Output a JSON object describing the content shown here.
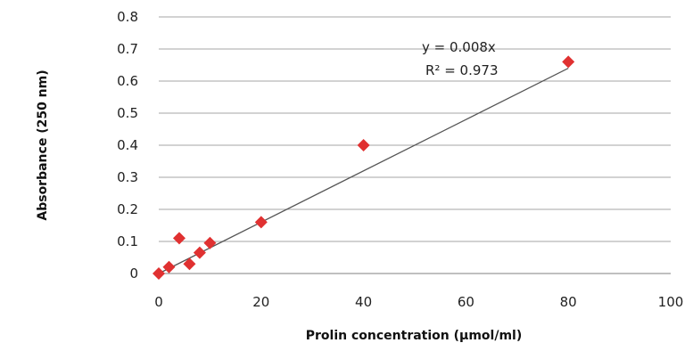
{
  "chart_data": {
    "type": "scatter",
    "title": "",
    "xlabel": "Prolin concentration (µmol/ml)",
    "ylabel": "Absorbance (250 nm)",
    "xlim": [
      0,
      100
    ],
    "ylim": [
      0,
      0.8
    ],
    "x_ticks": [
      "0",
      "20",
      "40",
      "60",
      "80",
      "100"
    ],
    "y_ticks": [
      "0",
      "0.1",
      "0.2",
      "0.3",
      "0.4",
      "0.5",
      "0.6",
      "0.7",
      "0.8"
    ],
    "grid": "horizontal",
    "legend": "none",
    "marker": "diamond",
    "marker_color": "#e03131",
    "points": [
      {
        "x": 0,
        "y": 0.0
      },
      {
        "x": 2,
        "y": 0.02
      },
      {
        "x": 4,
        "y": 0.11
      },
      {
        "x": 6,
        "y": 0.03
      },
      {
        "x": 8,
        "y": 0.065
      },
      {
        "x": 10,
        "y": 0.095
      },
      {
        "x": 20,
        "y": 0.16
      },
      {
        "x": 40,
        "y": 0.4
      },
      {
        "x": 80,
        "y": 0.66
      }
    ],
    "trendline": {
      "type": "linear",
      "slope": 0.008,
      "intercept": 0,
      "x_range": [
        0,
        80
      ]
    },
    "annotations": {
      "equation": "y = 0.008x",
      "r_squared": "R² = 0.973"
    }
  }
}
